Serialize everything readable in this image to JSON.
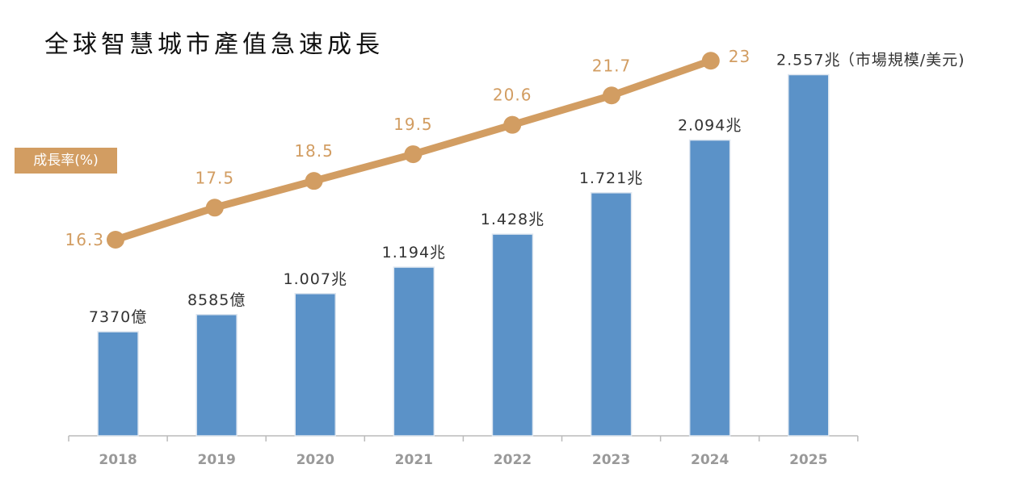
{
  "title": "全球智慧城市產值急速成長",
  "chart_data": {
    "type": "bar+line",
    "title": "全球智慧城市產值急速成長",
    "categories": [
      "2018",
      "2019",
      "2020",
      "2021",
      "2022",
      "2023",
      "2024",
      "2025"
    ],
    "bar_series": {
      "unit_note": "（市場規模/美元)",
      "values_trillion": [
        0.737,
        0.8585,
        1.007,
        1.194,
        1.428,
        1.721,
        2.094,
        2.557
      ],
      "labels": [
        "7370億",
        "8585億",
        "1.007兆",
        "1.194兆",
        "1.428兆",
        "1.721兆",
        "2.094兆",
        "2.557兆"
      ],
      "color": "#5B92C8"
    },
    "line_series": {
      "name": "成長率(%)",
      "categories": [
        "2018",
        "2019",
        "2020",
        "2021",
        "2022",
        "2023",
        "2024"
      ],
      "values": [
        16.3,
        17.5,
        18.5,
        19.5,
        20.6,
        21.7,
        23
      ],
      "labels": [
        "16.3",
        "17.5",
        "18.5",
        "19.5",
        "20.6",
        "21.7",
        "23"
      ],
      "color": "#D29D62"
    },
    "grid": false,
    "legend": "left"
  }
}
